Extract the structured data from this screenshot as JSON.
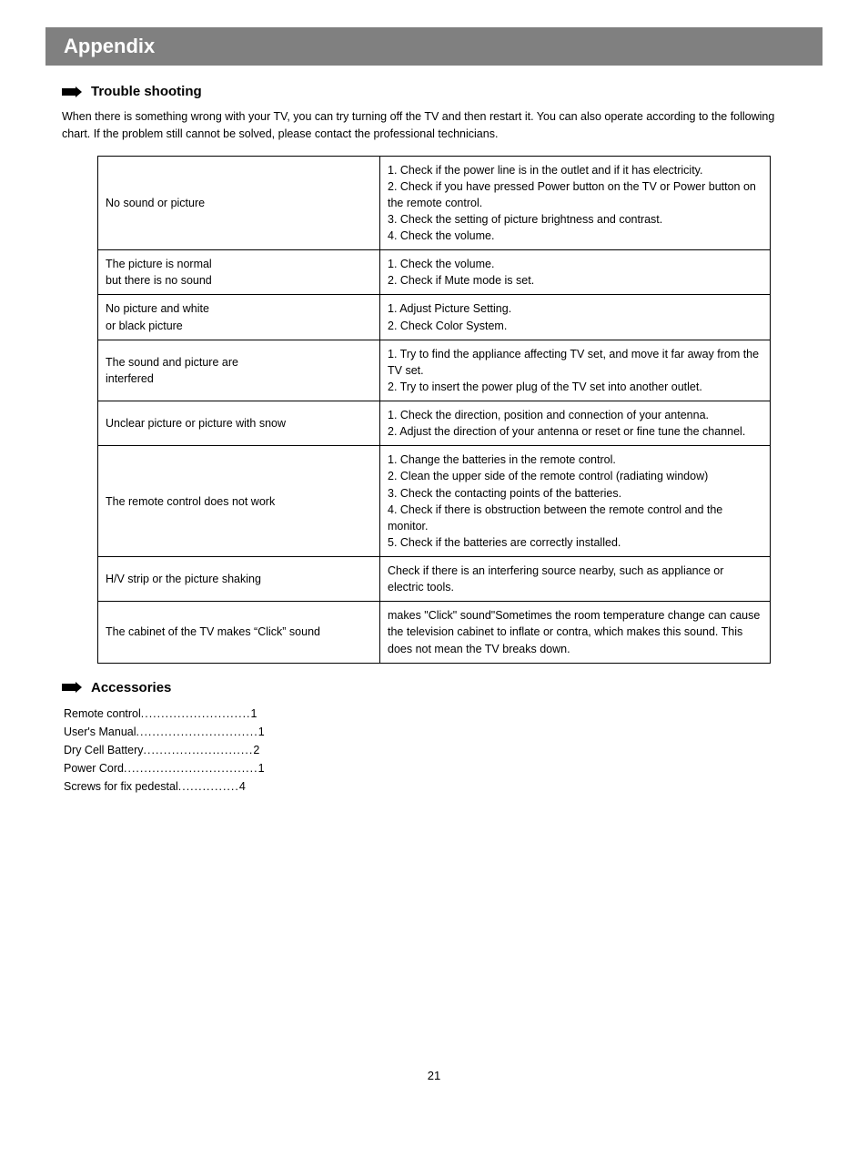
{
  "header": {
    "title": "Appendix"
  },
  "sections": {
    "trouble": {
      "heading": "Trouble shooting",
      "intro": "When there is something wrong with your TV, you can try turning off the TV and then restart it. You can also operate according to the following chart. If the problem still cannot be solved, please contact the professional technicians.",
      "rows": [
        {
          "problem": "No sound or picture",
          "solution": "1. Check if the power line is in the outlet and if it has electricity.\n2. Check if you have pressed Power button on the TV or Power button on the remote control.\n3. Check the setting of picture brightness and contrast.\n4. Check the volume."
        },
        {
          "problem": "The picture is normal\nbut there is no sound",
          "solution": "1. Check the volume.\n2. Check if Mute mode is set."
        },
        {
          "problem": "No picture and white\nor black picture",
          "solution": "1. Adjust Picture Setting.\n2. Check Color System."
        },
        {
          "problem": "The sound and picture are\ninterfered",
          "solution": "1. Try to find the appliance affecting TV set, and move it far away from the TV set.\n2. Try to insert the power plug of the TV set into another outlet."
        },
        {
          "problem": "Unclear picture or picture with snow",
          "solution": "1. Check the direction, position and connection of your antenna.\n2. Adjust the direction of your antenna or reset or fine tune the channel."
        },
        {
          "problem": "The remote control does not work",
          "solution": "1. Change the batteries in the remote control.\n2. Clean the upper side of the remote control (radiating window)\n3. Check the contacting points of the batteries.\n4. Check if there is obstruction between the remote control and the monitor.\n5. Check if the batteries are correctly installed."
        },
        {
          "problem": "H/V strip or the picture shaking",
          "solution": "Check if there is an interfering source nearby, such as appliance or electric tools."
        },
        {
          "problem": "The cabinet of the TV makes “Click” sound",
          "solution": "makes \"Click\" sound\"Sometimes the room temperature change can cause the television cabinet to inflate or contra, which makes this sound.  This does not mean the TV breaks down."
        }
      ]
    },
    "accessories": {
      "heading": "Accessories",
      "items": [
        {
          "label": "Remote control",
          "dots": "...........................",
          "qty": "1"
        },
        {
          "label": "User's Manual",
          "dots": "..............................",
          "qty": "1"
        },
        {
          "label": "Dry Cell Battery",
          "dots": "...........................",
          "qty": "2"
        },
        {
          "label": "Power Cord",
          "dots": ".................................",
          "qty": "1"
        },
        {
          "label": "Screws for fix pedestal",
          "dots": "...............",
          "qty": "4"
        }
      ]
    }
  },
  "page_number": "21",
  "colors": {
    "header_bg": "#808080",
    "header_fg": "#ffffff",
    "text": "#000000",
    "border": "#000000",
    "page_bg": "#ffffff"
  },
  "typography": {
    "body_family": "Arial, Helvetica, sans-serif",
    "header_size_pt": 17,
    "section_head_size_pt": 11,
    "body_size_pt": 9
  }
}
